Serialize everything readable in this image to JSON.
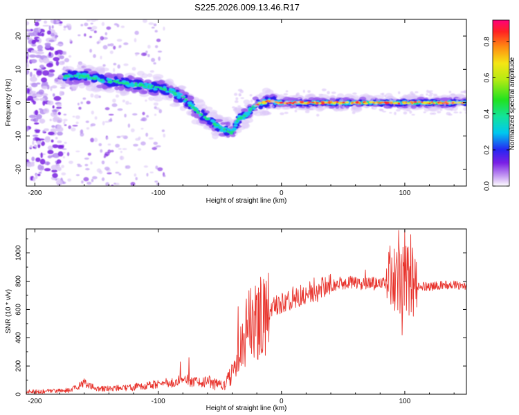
{
  "title": "S225.2026.009.13.46.R17",
  "chart_data": [
    {
      "type": "heatmap",
      "xlabel": "Height of straight line (km)",
      "ylabel": "Frequency (Hz)",
      "xlim": [
        -207,
        150
      ],
      "ylim": [
        -25,
        25
      ],
      "xticks": [
        -200,
        -100,
        0,
        100
      ],
      "yticks": [
        -20,
        -10,
        0,
        10,
        20
      ],
      "colorbar": {
        "label": "Normalized spectral amplitude",
        "range": [
          0,
          0.92
        ],
        "ticks": [
          "0.0",
          "0.2",
          "0.4",
          "0.6",
          "0.8"
        ]
      },
      "ridge": {
        "x": [
          -175,
          -160,
          -140,
          -120,
          -100,
          -90,
          -80,
          -70,
          -60,
          -50,
          -40,
          -35,
          -30,
          -25,
          -20,
          -15,
          -10,
          -5,
          0,
          20,
          60,
          100,
          150
        ],
        "frequency": [
          8,
          8,
          6.5,
          5.5,
          4.5,
          3.5,
          1.5,
          -2,
          -5,
          -7.5,
          -9,
          -5,
          -4,
          -2,
          -0.5,
          0,
          0.5,
          0.2,
          0,
          0,
          0,
          0,
          0
        ]
      }
    },
    {
      "type": "line",
      "xlabel": "Height of straight line (km)",
      "ylabel": "SNR (10 * v/v)",
      "xlim": [
        -207,
        150
      ],
      "ylim": [
        0,
        1170
      ],
      "xticks": [
        -200,
        -100,
        0,
        100
      ],
      "yticks": [
        0,
        200,
        400,
        600,
        800,
        1000
      ],
      "color": "#e8332c",
      "series": [
        {
          "name": "SNR",
          "x": [
            -207,
            -190,
            -170,
            -160,
            -150,
            -120,
            -110,
            -100,
            -90,
            -80,
            -70,
            -60,
            -50,
            -45,
            -40,
            -35,
            -30,
            -25,
            -20,
            -15,
            -10,
            -5,
            0,
            10,
            20,
            30,
            40,
            50,
            60,
            70,
            80,
            85,
            90,
            95,
            100,
            105,
            110,
            120,
            130,
            140,
            150
          ],
          "y": [
            18,
            22,
            30,
            80,
            35,
            50,
            60,
            70,
            85,
            100,
            90,
            85,
            60,
            80,
            150,
            280,
            420,
            500,
            520,
            570,
            600,
            620,
            640,
            690,
            720,
            745,
            770,
            790,
            790,
            780,
            785,
            790,
            770,
            800,
            810,
            790,
            770,
            760,
            770,
            780,
            760
          ]
        }
      ],
      "spikes": [
        {
          "x": -160,
          "y": 110
        },
        {
          "x": -82,
          "y": 230
        },
        {
          "x": -75,
          "y": 260
        },
        {
          "x": -35,
          "y": 620
        },
        {
          "x": -25,
          "y": 750
        },
        {
          "x": -18,
          "y": 720
        },
        {
          "x": 68,
          "y": 880
        },
        {
          "x": 88,
          "y": 1050
        },
        {
          "x": 95,
          "y": 1160
        },
        {
          "x": 100,
          "y": 1160
        },
        {
          "x": 105,
          "y": 1130
        },
        {
          "x": 98,
          "y": 420
        }
      ]
    }
  ]
}
